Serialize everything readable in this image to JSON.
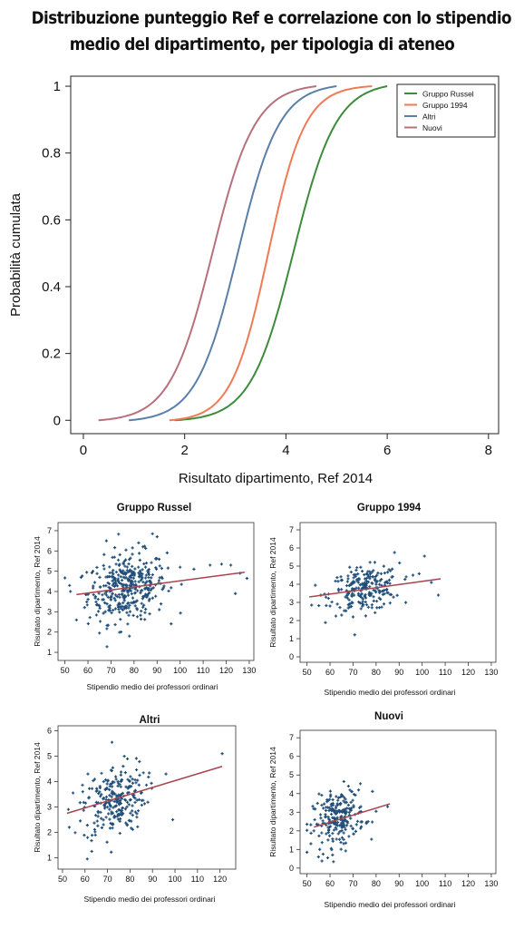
{
  "page": {
    "title_line1": "Distribuzione punteggio Ref e correlazione con lo stipendio",
    "title_line2": "medio del dipartimento, per tipologia di ateneo"
  },
  "chart_data": [
    {
      "type": "line",
      "xlabel": "Risultato dipartimento, Ref 2014",
      "ylabel": "Probabilità cumulata",
      "xlim": [
        -0.25,
        8.2
      ],
      "ylim": [
        -0.04,
        1.03
      ],
      "xticks": [
        0,
        2,
        4,
        6,
        8
      ],
      "yticks": [
        0,
        0.2,
        0.4,
        0.6,
        0.8,
        1
      ],
      "ytick_labels": [
        "0",
        "0.2",
        "0.4",
        "0.6",
        "0.8",
        "1"
      ],
      "grid": false,
      "legend_position": "top-right",
      "series": [
        {
          "name": "Gruppo Russel",
          "color": "#3c8c3c",
          "min": 1.8,
          "max": 6.0,
          "mu": 4.15,
          "sigma": 0.72
        },
        {
          "name": "Gruppo 1994",
          "color": "#f07a55",
          "min": 1.7,
          "max": 5.7,
          "mu": 3.65,
          "sigma": 0.62
        },
        {
          "name": "Altri",
          "color": "#5a7fa8",
          "min": 0.9,
          "max": 5.0,
          "mu": 3.05,
          "sigma": 0.7
        },
        {
          "name": "Nuovi",
          "color": "#b8707c",
          "min": 0.3,
          "max": 4.6,
          "mu": 2.55,
          "sigma": 0.72
        }
      ]
    },
    {
      "type": "scatter",
      "title": "Gruppo Russel",
      "xlabel": "Stipendio medio dei professori ordinari",
      "ylabel": "Risultato dipartimento, Ref 2014",
      "xlim": [
        47,
        132
      ],
      "ylim": [
        0.6,
        7.4
      ],
      "xticks": [
        50,
        60,
        70,
        80,
        90,
        100,
        110,
        120,
        130
      ],
      "yticks": [
        1,
        2,
        3,
        4,
        5,
        6,
        7
      ],
      "point_color": "#1f4e79",
      "trend_color": "#a8444f",
      "trend": [
        [
          55,
          3.85
        ],
        [
          128,
          4.95
        ]
      ],
      "n": 380,
      "x_mean": 77,
      "x_sd": 8.5,
      "y_mean": 4.2,
      "y_sd": 0.82,
      "slope": 0.016,
      "extra_points": [
        [
          88,
          6.85
        ],
        [
          90,
          6.7
        ],
        [
          113,
          5.3
        ],
        [
          118,
          5.35
        ],
        [
          122,
          5.3
        ],
        [
          126,
          4.9
        ],
        [
          129,
          4.65
        ],
        [
          124,
          3.9
        ],
        [
          106,
          5.1
        ],
        [
          100,
          5.2
        ],
        [
          55,
          2.6
        ],
        [
          57,
          4.7
        ],
        [
          52,
          4.3
        ],
        [
          78,
          1.8
        ],
        [
          65,
          1.95
        ],
        [
          68,
          6.5
        ],
        [
          82,
          6.4
        ]
      ]
    },
    {
      "type": "scatter",
      "title": "Gruppo 1994",
      "xlabel": "Stipendio medio dei professori ordinari",
      "ylabel": "Risultato dipartimento, Ref 2014",
      "xlim": [
        47,
        132
      ],
      "ylim": [
        -0.3,
        7.4
      ],
      "xticks": [
        50,
        60,
        70,
        80,
        90,
        100,
        110,
        120,
        130
      ],
      "yticks": [
        0,
        1,
        2,
        3,
        4,
        5,
        6,
        7
      ],
      "point_color": "#1f4e79",
      "trend_color": "#a8444f",
      "trend": [
        [
          51,
          3.3
        ],
        [
          108,
          4.3
        ]
      ],
      "n": 230,
      "x_mean": 75,
      "x_sd": 7.5,
      "y_mean": 3.7,
      "y_sd": 0.6,
      "slope": 0.017,
      "extra_points": [
        [
          88,
          5.75
        ],
        [
          101,
          5.55
        ],
        [
          107,
          3.4
        ],
        [
          104,
          4.1
        ],
        [
          96,
          4.5
        ],
        [
          52,
          2.85
        ],
        [
          56,
          3.4
        ],
        [
          60,
          2.8
        ],
        [
          70,
          2.2
        ]
      ]
    },
    {
      "type": "scatter",
      "title": "Altri",
      "xlabel": "Stipendio medio dei professori ordinari",
      "ylabel": "Risultato dipartimento, Ref 2014",
      "xlim": [
        48,
        127
      ],
      "ylim": [
        0.55,
        6.2
      ],
      "xticks": [
        50,
        60,
        70,
        80,
        90,
        100,
        110,
        120
      ],
      "yticks": [
        1,
        2,
        3,
        4,
        5,
        6
      ],
      "point_color": "#1f4e79",
      "trend_color": "#a8444f",
      "trend": [
        [
          52,
          2.75
        ],
        [
          121,
          4.6
        ]
      ],
      "n": 250,
      "x_mean": 73,
      "x_sd": 7,
      "y_mean": 3.25,
      "y_sd": 0.7,
      "slope": 0.025,
      "extra_points": [
        [
          121,
          5.1
        ],
        [
          72,
          5.55
        ],
        [
          53,
          2.2
        ],
        [
          61,
          0.95
        ],
        [
          63,
          1.25
        ],
        [
          99,
          2.5
        ],
        [
          96,
          4.3
        ],
        [
          59,
          3.6
        ]
      ]
    },
    {
      "type": "scatter",
      "title": "Nuovi",
      "xlabel": "Stipendio medio dei professori ordinari",
      "ylabel": "Risultato dipartimento, Ref 2014",
      "xlim": [
        47,
        132
      ],
      "ylim": [
        -0.3,
        7.4
      ],
      "xticks": [
        50,
        60,
        70,
        80,
        90,
        100,
        110,
        120,
        130
      ],
      "yticks": [
        0,
        1,
        2,
        3,
        4,
        5,
        6,
        7
      ],
      "point_color": "#1f4e79",
      "trend_color": "#a8444f",
      "trend": [
        [
          53,
          2.2
        ],
        [
          86,
          3.45
        ]
      ],
      "n": 230,
      "x_mean": 64,
      "x_sd": 5.5,
      "y_mean": 2.7,
      "y_sd": 0.72,
      "slope": 0.038,
      "extra_points": [
        [
          85,
          3.3
        ],
        [
          80,
          3.05
        ],
        [
          78,
          1.55
        ],
        [
          55,
          0.6
        ],
        [
          57,
          0.75
        ],
        [
          59,
          0.55
        ],
        [
          66,
          4.65
        ],
        [
          68,
          4.4
        ],
        [
          53,
          2.0
        ]
      ]
    }
  ]
}
